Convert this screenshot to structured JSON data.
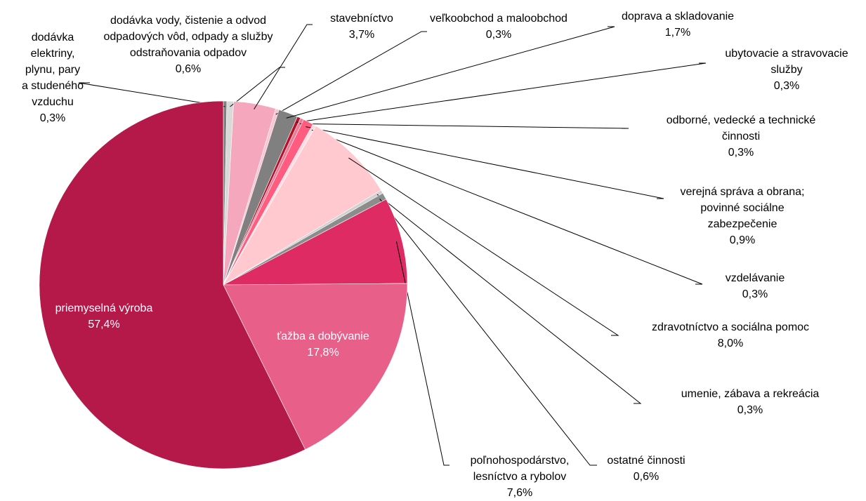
{
  "chart_data": {
    "type": "pie",
    "categories": [
      "dodávka elektriny, plynu, pary a studeného vzduchu",
      "dodávka vody, čistenie a odvod odpadových vôd, odpady a služby odstraňovania odpadov",
      "stavebníctvo",
      "veľkoobchod a maloobchod",
      "doprava a skladovanie",
      "ubytovacie a stravovacie služby",
      "odborné, vedecké a technické činnosti",
      "verejná správa a obrana; povinné sociálne zabezpečenie",
      "vzdelávanie",
      "zdravotníctvo a sociálna pomoc",
      "umenie, zábava a rekreácia",
      "ostatné činnosti",
      "poľnohospodárstvo, lesníctvo a rybolov",
      "ťažba a dobývanie",
      "priemyselná výroba"
    ],
    "values": [
      0.3,
      0.6,
      3.7,
      0.3,
      1.7,
      0.3,
      0.3,
      0.9,
      0.3,
      8.0,
      0.3,
      0.6,
      7.6,
      17.8,
      57.4
    ],
    "value_labels": [
      "0,3%",
      "0,6%",
      "3,7%",
      "0,3%",
      "1,7%",
      "0,3%",
      "0,3%",
      "0,9%",
      "0,3%",
      "8,0%",
      "0,3%",
      "0,6%",
      "7,6%",
      "17,8%",
      "57,4%"
    ],
    "colors": [
      "#7f7f7f",
      "#d9d9d9",
      "#f4a7bd",
      "#f9c6d3",
      "#808080",
      "#b80f2a",
      "#f07a96",
      "#ff5c80",
      "#ffdce3",
      "#ffc9cf",
      "#d0d0d0",
      "#8c8c8c",
      "#df2b64",
      "#e8608a",
      "#b5194a"
    ]
  }
}
